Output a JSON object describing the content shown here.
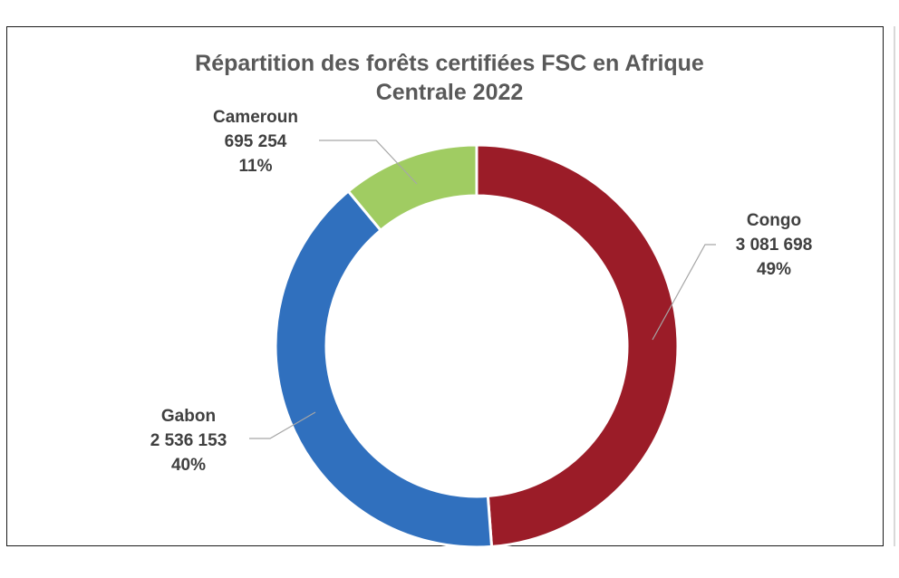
{
  "chart_data": {
    "type": "pie",
    "variant": "donut",
    "title_lines": [
      "Répartition des forêts certifiées FSC en Afrique",
      "Centrale 2022"
    ],
    "slices": [
      {
        "name": "Congo",
        "value": 3081698,
        "value_label": "3 081 698",
        "percent_label": "49%",
        "color": "#9b1c28"
      },
      {
        "name": "Gabon",
        "value": 2536153,
        "value_label": "2 536 153",
        "percent_label": "40%",
        "color": "#3070be"
      },
      {
        "name": "Cameroun",
        "value": 695254,
        "value_label": "695 254",
        "percent_label": "11%",
        "color": "#a0cc62"
      }
    ],
    "start_angle_deg": 0,
    "direction": "clockwise",
    "legend": "none",
    "leader_line_color": "#a6a6a6"
  }
}
